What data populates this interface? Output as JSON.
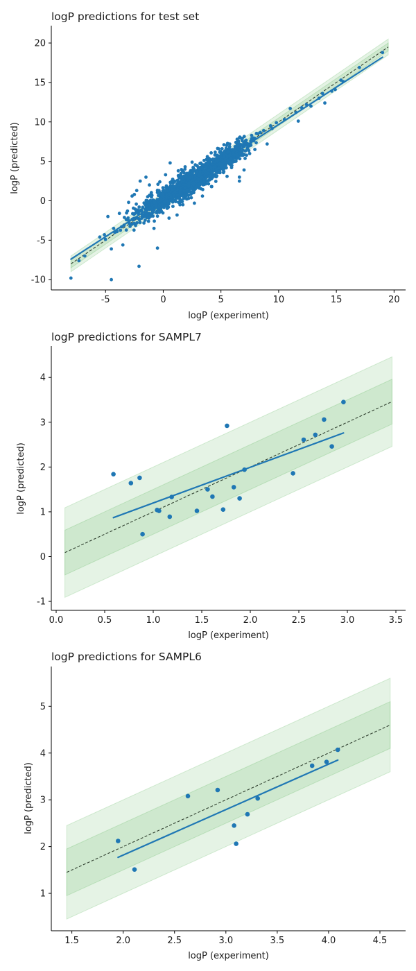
{
  "figure": {
    "colors": {
      "points": "#1f77b4",
      "fit_line": "#1f77b4",
      "identity_line": "#2f3f2f",
      "band_inner": "#2ca02c",
      "band_outer": "#2ca02c",
      "axes": "#000000"
    }
  },
  "chart_data": [
    {
      "type": "scatter",
      "title": "logP predictions for test set",
      "xlabel": "logP (experiment)",
      "ylabel": "logP (predicted)",
      "xlim": [
        -9.7,
        21.0
      ],
      "ylim": [
        -11.3,
        22.2
      ],
      "xticks": [
        -5,
        0,
        5,
        10,
        15,
        20
      ],
      "yticks": [
        -10,
        -5,
        0,
        5,
        10,
        15,
        20
      ],
      "identity_range": [
        -8,
        19.5
      ],
      "band_inner_halfwidth": 0.5,
      "band_outer_halfwidth": 1.0,
      "fit_line": {
        "x": [
          -8,
          19
        ],
        "y": [
          -7.4,
          18.2
        ]
      },
      "point_radius": 2.4,
      "cloud": {
        "count": 1400,
        "xmin": -3,
        "xmax": 8,
        "seed": 7
      },
      "points": [
        {
          "x": -8.0,
          "y": -9.8
        },
        {
          "x": -7.3,
          "y": -7.6
        },
        {
          "x": -6.8,
          "y": -7.0
        },
        {
          "x": -5.5,
          "y": -4.6
        },
        {
          "x": -5.1,
          "y": -4.3
        },
        {
          "x": -5.0,
          "y": -4.9
        },
        {
          "x": -4.8,
          "y": -2.0
        },
        {
          "x": -4.5,
          "y": -6.1
        },
        {
          "x": -4.5,
          "y": -10.0
        },
        {
          "x": -4.3,
          "y": -3.5
        },
        {
          "x": -4.2,
          "y": -4.0
        },
        {
          "x": -4.0,
          "y": -3.9
        },
        {
          "x": -3.8,
          "y": -1.6
        },
        {
          "x": -3.6,
          "y": -3.3
        },
        {
          "x": -3.5,
          "y": -5.6
        },
        {
          "x": -3.4,
          "y": -3.1
        },
        {
          "x": -3.2,
          "y": -2.4
        },
        {
          "x": -3.1,
          "y": -1.3
        },
        {
          "x": -3.0,
          "y": -0.2
        },
        {
          "x": -2.9,
          "y": -2.9
        },
        {
          "x": -2.7,
          "y": 0.6
        },
        {
          "x": -2.5,
          "y": 0.8
        },
        {
          "x": -2.3,
          "y": 1.3
        },
        {
          "x": -2.1,
          "y": -8.3
        },
        {
          "x": -2.0,
          "y": 2.5
        },
        {
          "x": -1.5,
          "y": 3.0
        },
        {
          "x": -1.2,
          "y": 2.0
        },
        {
          "x": -0.8,
          "y": -3.5
        },
        {
          "x": -0.5,
          "y": -6.0
        },
        {
          "x": -0.3,
          "y": 2.4
        },
        {
          "x": 0.2,
          "y": 3.3
        },
        {
          "x": 0.5,
          "y": -2.2
        },
        {
          "x": 0.6,
          "y": 4.8
        },
        {
          "x": 1.2,
          "y": -1.8
        },
        {
          "x": 1.3,
          "y": 3.8
        },
        {
          "x": 1.7,
          "y": -0.5
        },
        {
          "x": 2.5,
          "y": 4.9
        },
        {
          "x": 2.7,
          "y": -0.3
        },
        {
          "x": 3.4,
          "y": 0.6
        },
        {
          "x": 3.8,
          "y": 5.2
        },
        {
          "x": 4.2,
          "y": 1.8
        },
        {
          "x": 5.1,
          "y": 6.6
        },
        {
          "x": 5.6,
          "y": 6.3
        },
        {
          "x": 6.3,
          "y": 7.4
        },
        {
          "x": 6.4,
          "y": 7.8
        },
        {
          "x": 6.6,
          "y": 3.0
        },
        {
          "x": 6.6,
          "y": 2.5
        },
        {
          "x": 7.0,
          "y": 3.9
        },
        {
          "x": 8.2,
          "y": 8.5
        },
        {
          "x": 8.7,
          "y": 8.9
        },
        {
          "x": 9.0,
          "y": 7.2
        },
        {
          "x": 9.3,
          "y": 9.5
        },
        {
          "x": 9.8,
          "y": 9.9
        },
        {
          "x": 10.5,
          "y": 10.3
        },
        {
          "x": 11.0,
          "y": 11.7
        },
        {
          "x": 11.5,
          "y": 11.2
        },
        {
          "x": 11.7,
          "y": 10.1
        },
        {
          "x": 12.0,
          "y": 11.8
        },
        {
          "x": 12.4,
          "y": 12.2
        },
        {
          "x": 12.8,
          "y": 12.0
        },
        {
          "x": 13.5,
          "y": 13.0
        },
        {
          "x": 13.8,
          "y": 13.6
        },
        {
          "x": 14.0,
          "y": 12.4
        },
        {
          "x": 14.6,
          "y": 13.9
        },
        {
          "x": 14.9,
          "y": 14.1
        },
        {
          "x": 15.4,
          "y": 15.3
        },
        {
          "x": 15.6,
          "y": 15.1
        },
        {
          "x": 17.0,
          "y": 16.9
        },
        {
          "x": 19.0,
          "y": 18.8
        }
      ]
    },
    {
      "type": "scatter",
      "title": "logP predictions for SAMPL7",
      "xlabel": "logP (experiment)",
      "ylabel": "logP (predicted)",
      "xlim": [
        -0.05,
        3.6
      ],
      "ylim": [
        -1.2,
        4.7
      ],
      "xticks": [
        0.0,
        0.5,
        1.0,
        1.5,
        2.0,
        2.5,
        3.0,
        3.5
      ],
      "yticks": [
        -1,
        0,
        1,
        2,
        3,
        4
      ],
      "identity_range": [
        0.09,
        3.46
      ],
      "band_inner_halfwidth": 0.5,
      "band_outer_halfwidth": 1.0,
      "fit_line": {
        "x": [
          0.59,
          2.96
        ],
        "y": [
          0.87,
          2.76
        ]
      },
      "point_radius": 3.3,
      "points": [
        {
          "x": 0.59,
          "y": 1.84
        },
        {
          "x": 0.77,
          "y": 1.64
        },
        {
          "x": 0.86,
          "y": 1.76
        },
        {
          "x": 0.89,
          "y": 0.5
        },
        {
          "x": 1.04,
          "y": 1.04
        },
        {
          "x": 1.06,
          "y": 1.02
        },
        {
          "x": 1.17,
          "y": 0.89
        },
        {
          "x": 1.19,
          "y": 1.33
        },
        {
          "x": 1.45,
          "y": 1.02
        },
        {
          "x": 1.56,
          "y": 1.5
        },
        {
          "x": 1.61,
          "y": 1.34
        },
        {
          "x": 1.72,
          "y": 1.05
        },
        {
          "x": 1.76,
          "y": 2.92
        },
        {
          "x": 1.83,
          "y": 1.55
        },
        {
          "x": 1.89,
          "y": 1.3
        },
        {
          "x": 1.94,
          "y": 1.94
        },
        {
          "x": 2.44,
          "y": 1.86
        },
        {
          "x": 2.55,
          "y": 2.61
        },
        {
          "x": 2.67,
          "y": 2.72
        },
        {
          "x": 2.76,
          "y": 3.06
        },
        {
          "x": 2.84,
          "y": 2.46
        },
        {
          "x": 2.96,
          "y": 3.45
        }
      ]
    },
    {
      "type": "scatter",
      "title": "logP predictions for SAMPL6",
      "xlabel": "logP (experiment)",
      "ylabel": "logP (predicted)",
      "xlim": [
        1.3,
        4.75
      ],
      "ylim": [
        0.2,
        5.85
      ],
      "xticks": [
        1.5,
        2.0,
        2.5,
        3.0,
        3.5,
        4.0,
        4.5
      ],
      "yticks": [
        1,
        2,
        3,
        4,
        5
      ],
      "identity_range": [
        1.45,
        4.6
      ],
      "band_inner_halfwidth": 0.5,
      "band_outer_halfwidth": 1.0,
      "fit_line": {
        "x": [
          1.95,
          4.09
        ],
        "y": [
          1.77,
          3.85
        ]
      },
      "point_radius": 3.3,
      "points": [
        {
          "x": 1.95,
          "y": 2.12
        },
        {
          "x": 2.11,
          "y": 1.51
        },
        {
          "x": 2.63,
          "y": 3.08
        },
        {
          "x": 2.92,
          "y": 3.21
        },
        {
          "x": 3.08,
          "y": 2.45
        },
        {
          "x": 3.1,
          "y": 2.06
        },
        {
          "x": 3.21,
          "y": 2.69
        },
        {
          "x": 3.31,
          "y": 3.03
        },
        {
          "x": 3.84,
          "y": 3.73
        },
        {
          "x": 3.98,
          "y": 3.81
        },
        {
          "x": 4.09,
          "y": 4.07
        }
      ]
    }
  ]
}
